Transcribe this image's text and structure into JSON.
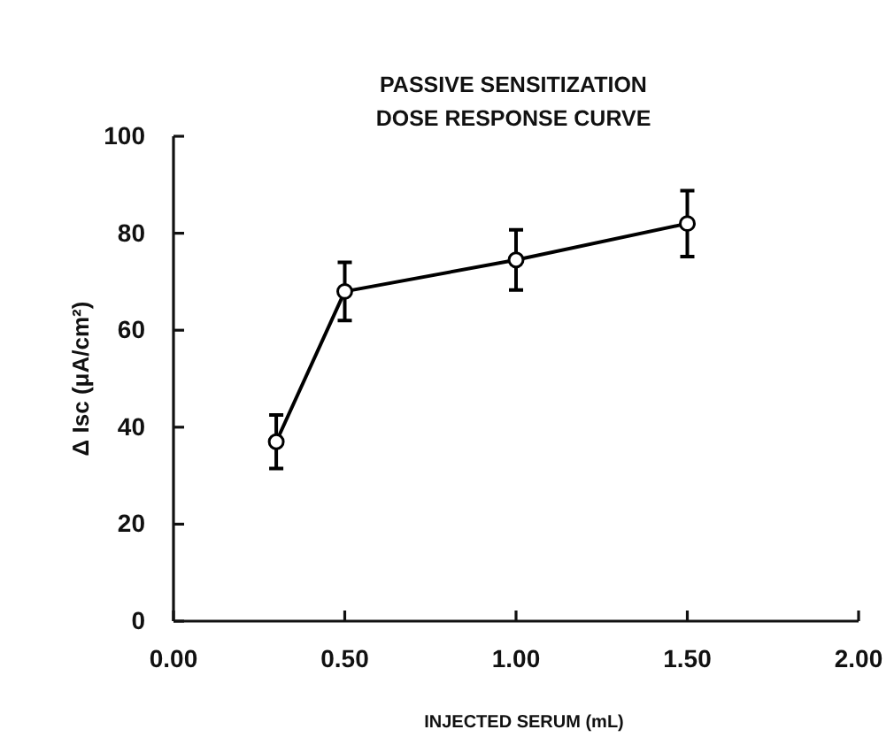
{
  "chart_data": {
    "type": "line",
    "title": "PASSIVE SENSITIZATION\nDOSE RESPONSE CURVE",
    "xlabel": "INJECTED SERUM (mL)",
    "ylabel": "Δ Isc (μA/cm²)",
    "x": [
      0.3,
      0.5,
      1.0,
      1.5
    ],
    "series": [
      {
        "color": "#000000",
        "values": [
          37,
          68,
          74.5,
          82
        ],
        "errors": [
          5.5,
          6,
          6.2,
          6.8
        ]
      }
    ],
    "xlim": [
      0,
      2
    ],
    "xticks": [
      {
        "value": 0,
        "label": "0.00"
      },
      {
        "value": 0.5,
        "label": "0.50"
      },
      {
        "value": 1,
        "label": "1.00"
      },
      {
        "value": 1.5,
        "label": "1.50"
      },
      {
        "value": 2,
        "label": "2.00"
      }
    ],
    "ylim": [
      0,
      100
    ],
    "yticks": [
      0,
      20,
      40,
      60,
      80,
      100
    ],
    "grid": false,
    "marker": "circle",
    "line_style": "solid"
  }
}
